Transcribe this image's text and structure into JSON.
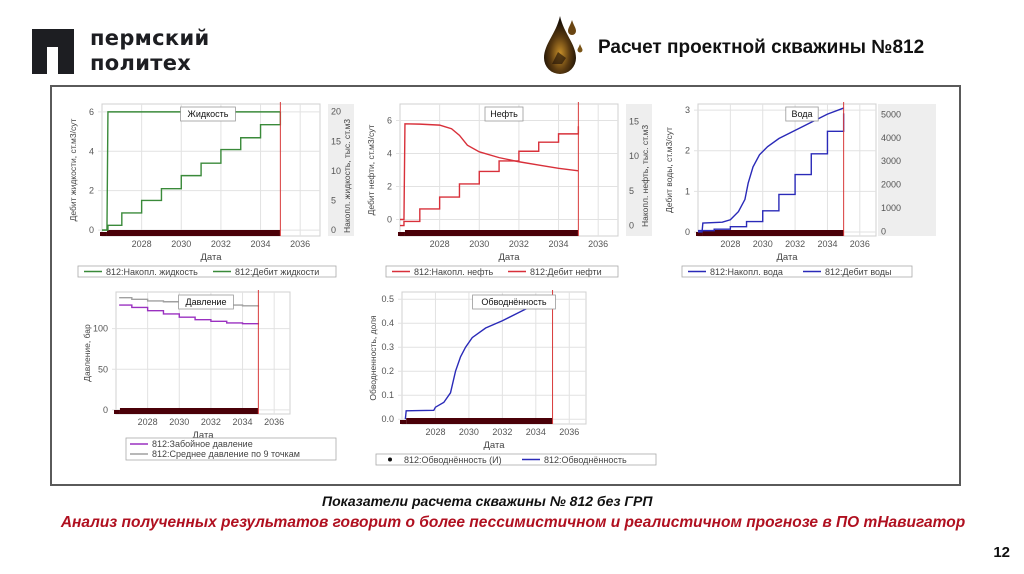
{
  "header": {
    "logo_line1": "пермский",
    "logo_line2": "политех",
    "title": "Расчет проектной скважины №812",
    "icon": "oil-drop-icon"
  },
  "caption": "Показатели расчета скважины № 812 без ГРП",
  "conclusion": "Анализ полученных результатов говорит о более пессимистичном и реалистичном прогнозе в ПО тНавигатор",
  "page_number": "12",
  "colors": {
    "liquid": "#3a8a3a",
    "oil": "#d8303a",
    "water": "#2a2ab8",
    "bhp": "#9a30c0",
    "avg_pressure": "#a0a0a0",
    "watercut": "#2a2ab8",
    "timeline_bar": "#4a0008",
    "end_marker": "#d83a3a",
    "conclusion_text": "#b01020"
  },
  "chart_data": [
    {
      "id": "liquid",
      "type": "line",
      "title": "Жидкость",
      "xlabel": "Дата",
      "ylabel": "Дебит жидкости, ст.м3/сут",
      "y2label": "Накопл. жидкость, тыс. ст.м3",
      "xticks": [
        2028,
        2030,
        2032,
        2034,
        2036
      ],
      "xlim": [
        2026.0,
        2037.0
      ],
      "ylim": [
        -0.3,
        6.4
      ],
      "yticks": [
        0,
        2,
        4,
        6
      ],
      "y2lim": [
        -1,
        21.3
      ],
      "y2ticks": [
        0,
        5,
        10,
        15,
        20
      ],
      "end_marker_x": 2035.0,
      "series": [
        {
          "name": "812:Накопл. жидкость",
          "axis": "y2",
          "step": true,
          "x": [
            2026.0,
            2026.3,
            2026.3,
            2027.0,
            2028.0,
            2029.0,
            2030.0,
            2031.0,
            2032.0,
            2033.0,
            2034.0,
            2035.0,
            2035.0
          ],
          "y": [
            0,
            0,
            0.8,
            2.9,
            5.0,
            7.0,
            9.2,
            11.3,
            13.6,
            15.6,
            17.8,
            17.8,
            20.0
          ]
        },
        {
          "name": "812:Дебит жидкости",
          "axis": "y1",
          "x": [
            2026.0,
            2026.25,
            2026.3,
            2035.0
          ],
          "y": [
            0,
            0,
            6.0,
            6.0
          ]
        }
      ]
    },
    {
      "id": "oil",
      "type": "line",
      "title": "Нефть",
      "xlabel": "Дата",
      "ylabel": "Дебит нефти, ст.м3/сут",
      "y2label": "Накопл. нефть, тыс. ст.м3",
      "xticks": [
        2028,
        2030,
        2032,
        2034,
        2036
      ],
      "xlim": [
        2026.0,
        2037.0
      ],
      "ylim": [
        -1.0,
        7.0
      ],
      "yticks": [
        0,
        2,
        4,
        6
      ],
      "y2lim": [
        -1.5,
        17.5
      ],
      "y2ticks": [
        0,
        5,
        10,
        15
      ],
      "end_marker_x": 2035.0,
      "series": [
        {
          "name": "812:Накопл. нефть",
          "axis": "y2",
          "step": true,
          "x": [
            2026.0,
            2026.2,
            2026.2,
            2027.0,
            2028.0,
            2029.0,
            2030.0,
            2031.0,
            2032.0,
            2033.0,
            2034.0,
            2035.0,
            2035.0
          ],
          "y": [
            0,
            0,
            0.6,
            2.4,
            4.1,
            6.0,
            7.8,
            9.3,
            10.7,
            12.0,
            13.2,
            13.2,
            14.3
          ]
        },
        {
          "name": "812:Дебит нефти",
          "axis": "y1",
          "x": [
            2026.0,
            2026.2,
            2026.25,
            2027.0,
            2028.0,
            2028.6,
            2029.0,
            2029.4,
            2030.0,
            2031.0,
            2032.0,
            2033.0,
            2034.0,
            2035.0
          ],
          "y": [
            0,
            0,
            5.8,
            5.78,
            5.72,
            5.5,
            5.1,
            4.5,
            4.1,
            3.75,
            3.5,
            3.3,
            3.1,
            2.95
          ]
        }
      ]
    },
    {
      "id": "water",
      "type": "line",
      "title": "Вода",
      "xlabel": "Дата",
      "ylabel": "Дебит воды, ст.м3/сут",
      "y2label": "Накопл. вода",
      "xticks": [
        2028,
        2030,
        2032,
        2034,
        2036
      ],
      "xlim": [
        2026.0,
        2037.0
      ],
      "ylim": [
        -0.1,
        3.15
      ],
      "yticks": [
        0,
        1,
        2,
        3
      ],
      "y2lim": [
        -200,
        5450
      ],
      "y2ticks": [
        0,
        1000,
        2000,
        3000,
        4000,
        5000
      ],
      "end_marker_x": 2035.0,
      "series": [
        {
          "name": "812:Накопл. вода",
          "axis": "y2",
          "step": true,
          "x": [
            2026.0,
            2027.0,
            2028.0,
            2029.0,
            2030.0,
            2031.0,
            2032.0,
            2033.0,
            2034.0,
            2035.0,
            2035.0
          ],
          "y": [
            30,
            90,
            200,
            420,
            880,
            1580,
            2430,
            3320,
            4280,
            4280,
            5050
          ]
        },
        {
          "name": "812:Дебит воды",
          "axis": "y1",
          "x": [
            2026.0,
            2026.25,
            2026.3,
            2027.5,
            2028.0,
            2028.5,
            2028.9,
            2029.1,
            2029.4,
            2029.8,
            2030.3,
            2031.0,
            2032.0,
            2033.0,
            2034.0,
            2035.0
          ],
          "y": [
            0,
            0,
            0.22,
            0.24,
            0.3,
            0.5,
            0.8,
            1.2,
            1.6,
            1.9,
            2.1,
            2.3,
            2.5,
            2.7,
            2.9,
            3.05
          ]
        }
      ]
    },
    {
      "id": "pressure",
      "type": "line",
      "title": "Давление",
      "xlabel": "Дата",
      "ylabel": "Давление, бар",
      "xticks": [
        2028,
        2030,
        2032,
        2034,
        2036
      ],
      "xlim": [
        2026.0,
        2037.0
      ],
      "ylim": [
        -5,
        145
      ],
      "yticks": [
        0,
        50,
        100
      ],
      "end_marker_x": 2035.0,
      "series": [
        {
          "name": "812:Забойное давление",
          "axis": "y1",
          "step": true,
          "x": [
            2026.2,
            2027.0,
            2028.0,
            2029.0,
            2030.0,
            2031.0,
            2032.0,
            2033.0,
            2034.0,
            2035.0
          ],
          "y": [
            129,
            126,
            122,
            118,
            114,
            111,
            109,
            107,
            106,
            105
          ]
        },
        {
          "name": "812:Среднее давление по 9 точкам",
          "axis": "y1",
          "step": true,
          "x": [
            2026.2,
            2027.0,
            2028.0,
            2029.0,
            2030.0,
            2031.0,
            2032.0,
            2033.0,
            2034.0,
            2035.0
          ],
          "y": [
            138,
            136,
            134,
            133,
            132,
            131,
            130,
            129,
            128,
            127
          ]
        }
      ]
    },
    {
      "id": "watercut",
      "type": "line",
      "title": "Обводнённость",
      "xlabel": "Дата",
      "ylabel": "Обводненность, доля",
      "xticks": [
        2028,
        2030,
        2032,
        2034,
        2036
      ],
      "xlim": [
        2026.0,
        2037.0
      ],
      "ylim": [
        -0.02,
        0.53
      ],
      "yticks": [
        0.0,
        0.1,
        0.2,
        0.3,
        0.4,
        0.5
      ],
      "end_marker_x": 2035.0,
      "series": [
        {
          "name": "812:Обводнённость (И)",
          "axis": "y1",
          "marker": "dot",
          "x": [],
          "y": []
        },
        {
          "name": "812:Обводнённость",
          "axis": "y1",
          "x": [
            2026.2,
            2026.25,
            2027.0,
            2027.9,
            2028.0,
            2028.5,
            2028.9,
            2029.2,
            2029.5,
            2029.8,
            2030.2,
            2031.0,
            2032.0,
            2033.0,
            2034.0,
            2035.0
          ],
          "y": [
            0.0,
            0.035,
            0.036,
            0.037,
            0.05,
            0.07,
            0.11,
            0.2,
            0.26,
            0.3,
            0.34,
            0.38,
            0.41,
            0.445,
            0.48,
            0.51
          ]
        }
      ]
    }
  ]
}
